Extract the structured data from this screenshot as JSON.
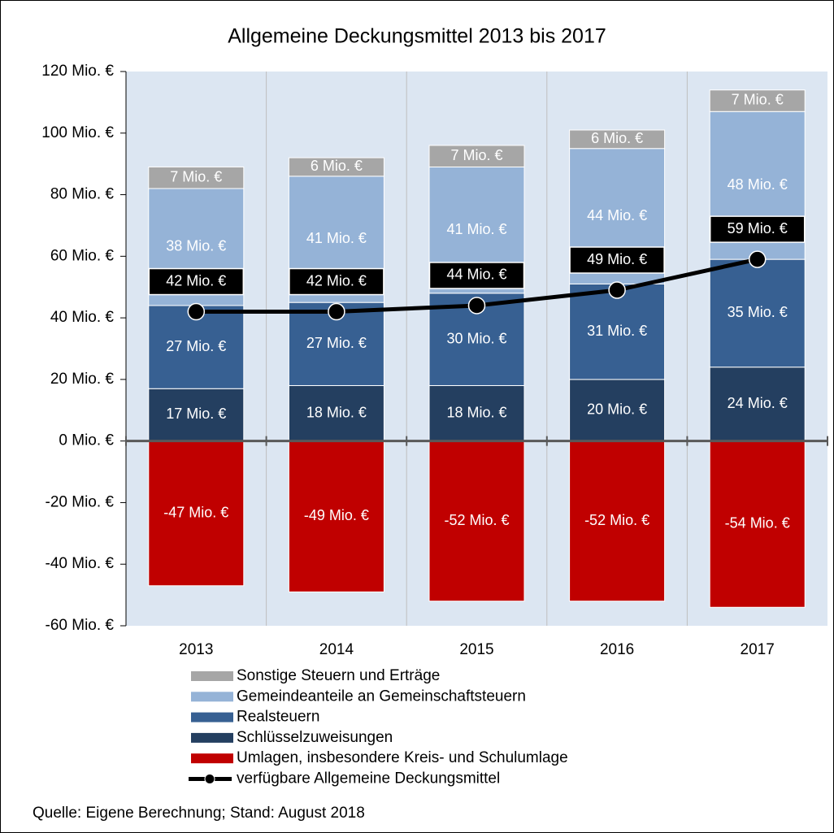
{
  "chart_data": {
    "type": "bar",
    "stacked": true,
    "title": "Allgemeine Deckungsmittel 2013 bis 2017",
    "categories": [
      "2013",
      "2014",
      "2015",
      "2016",
      "2017"
    ],
    "series": [
      {
        "name": "Sonstige Steuern und Erträge",
        "color": "#a6a6a6",
        "values": [
          7,
          6,
          7,
          6,
          7
        ],
        "value_labels": [
          "7 Mio. €",
          "6 Mio. €",
          "7 Mio. €",
          "6 Mio. €",
          "7 Mio. €"
        ]
      },
      {
        "name": "Gemeindeanteile an Gemeinschaftsteuern",
        "color": "#95b3d7",
        "values": [
          38,
          41,
          41,
          44,
          48
        ],
        "value_labels": [
          "38 Mio. €",
          "41 Mio. €",
          "41 Mio. €",
          "44 Mio. €",
          "48 Mio. €"
        ]
      },
      {
        "name": "Realsteuern",
        "color": "#376092",
        "values": [
          27,
          27,
          30,
          31,
          35
        ],
        "value_labels": [
          "27 Mio. €",
          "27 Mio. €",
          "30 Mio. €",
          "31 Mio. €",
          "35 Mio. €"
        ]
      },
      {
        "name": "Schlüsselzuweisungen",
        "color": "#243f60",
        "values": [
          17,
          18,
          18,
          20,
          24
        ],
        "value_labels": [
          "17 Mio. €",
          "18 Mio. €",
          "18 Mio. €",
          "20 Mio. €",
          "24 Mio. €"
        ]
      },
      {
        "name": "Umlagen, insbesondere Kreis- und Schulumlage",
        "color": "#c00000",
        "values": [
          -47,
          -49,
          -52,
          -52,
          -54
        ],
        "value_labels": [
          "-47 Mio. €",
          "-49 Mio. €",
          "-52 Mio. €",
          "-52 Mio. €",
          "-54 Mio. €"
        ]
      },
      {
        "name": "verfügbare Allgemeine Deckungsmittel",
        "type": "line",
        "color": "#000000",
        "values": [
          42,
          42,
          44,
          49,
          59
        ],
        "value_labels": [
          "42 Mio. €",
          "42 Mio. €",
          "44 Mio. €",
          "49 Mio. €",
          "59 Mio. €"
        ]
      }
    ],
    "ylim": [
      -60,
      120
    ],
    "yticks": [
      {
        "value": -60,
        "label": "-60 Mio. €"
      },
      {
        "value": -40,
        "label": "-40 Mio. €"
      },
      {
        "value": -20,
        "label": "-20 Mio. €"
      },
      {
        "value": 0,
        "label": "0 Mio. €"
      },
      {
        "value": 20,
        "label": "20 Mio. €"
      },
      {
        "value": 40,
        "label": "40 Mio. €"
      },
      {
        "value": 60,
        "label": "60 Mio. €"
      },
      {
        "value": 80,
        "label": "80 Mio. €"
      },
      {
        "value": 100,
        "label": "100 Mio. €"
      },
      {
        "value": 120,
        "label": "120 Mio. €"
      }
    ],
    "note": "Quelle: Eigene Berechnung; Stand: August 2018"
  }
}
